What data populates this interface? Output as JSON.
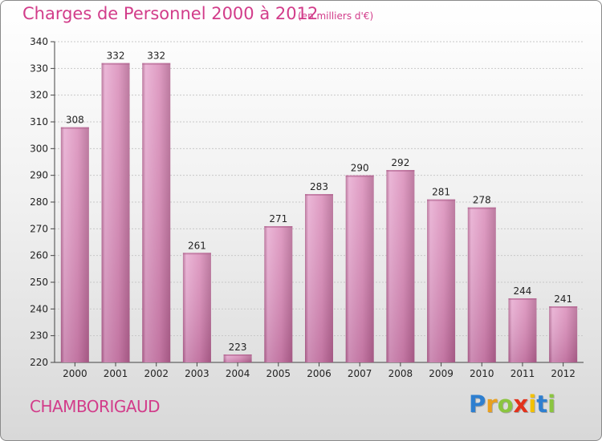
{
  "header": {
    "title": "Charges de Personnel 2000 à 2012",
    "subtitle": "(en milliers d'€)"
  },
  "footer": {
    "place": "CHAMBORIGAUD",
    "logo": {
      "letters": [
        "P",
        "r",
        "o",
        "x",
        "i",
        "t",
        "i"
      ],
      "colors": [
        "#2e7fd0",
        "#e8a020",
        "#8bc53f",
        "#e2321c",
        "#f2c100",
        "#2e7fd0",
        "#8bc53f"
      ]
    }
  },
  "colors": {
    "bar": "#d98bb8",
    "bar_light": "#e7aad0",
    "bar_dark": "#b0648f",
    "title": "#d23c8a"
  },
  "chart_data": {
    "type": "bar",
    "title": "Charges de Personnel 2000 à 2012",
    "subtitle": "(en milliers d'€)",
    "categories": [
      "2000",
      "2001",
      "2002",
      "2003",
      "2004",
      "2005",
      "2006",
      "2007",
      "2008",
      "2009",
      "2010",
      "2011",
      "2012"
    ],
    "values": [
      308,
      332,
      332,
      261,
      223,
      271,
      283,
      290,
      292,
      281,
      278,
      244,
      241
    ],
    "ylim": [
      220,
      340
    ],
    "yticks": [
      220,
      230,
      240,
      250,
      260,
      270,
      280,
      290,
      300,
      310,
      320,
      330,
      340
    ],
    "grid": true
  }
}
